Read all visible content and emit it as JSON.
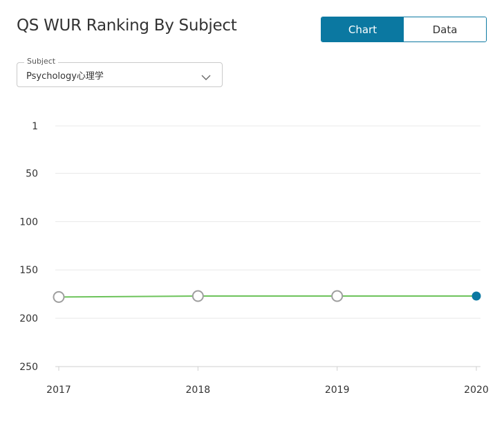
{
  "header": {
    "title": "QS WUR Ranking By Subject",
    "toggle": {
      "chart_label": "Chart",
      "data_label": "Data",
      "active": "chart"
    }
  },
  "subject_select": {
    "legend": "Subject",
    "value": "Psychology心理学",
    "icon": "chevron-down-icon"
  },
  "colors": {
    "accent": "#0b78a1",
    "line": "#6cc35a",
    "hollow_marker_stroke": "#9e9e9e"
  },
  "chart_data": {
    "type": "line",
    "x": [
      "2017",
      "2018",
      "2019",
      "2020"
    ],
    "series": [
      {
        "values": [
          178,
          177,
          177,
          177
        ]
      }
    ],
    "y_ticks": [
      1,
      50,
      100,
      150,
      200,
      250
    ],
    "ylim": [
      1,
      250
    ],
    "y_inverted": true,
    "grid": true,
    "highlighted_point": "2020"
  }
}
